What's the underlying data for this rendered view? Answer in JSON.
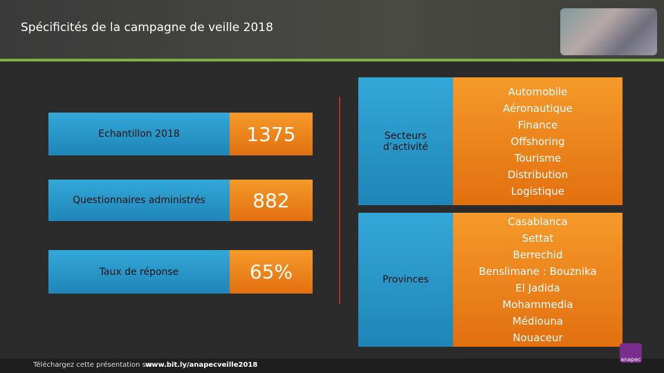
{
  "header": {
    "title": "Spécificités de la campagne de veille 2018"
  },
  "left_table": {
    "rows": [
      {
        "label": "Echantillon 2018",
        "value": "1375"
      },
      {
        "label": "Questionnaires administrés",
        "value": "882"
      },
      {
        "label": "Taux de réponse",
        "value": "65%"
      }
    ]
  },
  "right_table": {
    "rows": [
      {
        "label": "Secteurs d’activité",
        "items": [
          "Automobile",
          "Aéronautique",
          "Finance",
          "Offshoring",
          "Tourisme",
          "Distribution",
          "Logistique"
        ]
      },
      {
        "label": "Provinces",
        "items": [
          "Casablanca",
          "Settat",
          "Berrechid",
          "Benslimane : Bouznika",
          "El Jadida",
          "Mohammedia",
          "Médiouna",
          "Nouaceur"
        ]
      }
    ]
  },
  "footer": {
    "text": "Téléchargez cette présentation sur",
    "link": "www.bit.ly/anapecveille2018",
    "logo": "anapec"
  }
}
